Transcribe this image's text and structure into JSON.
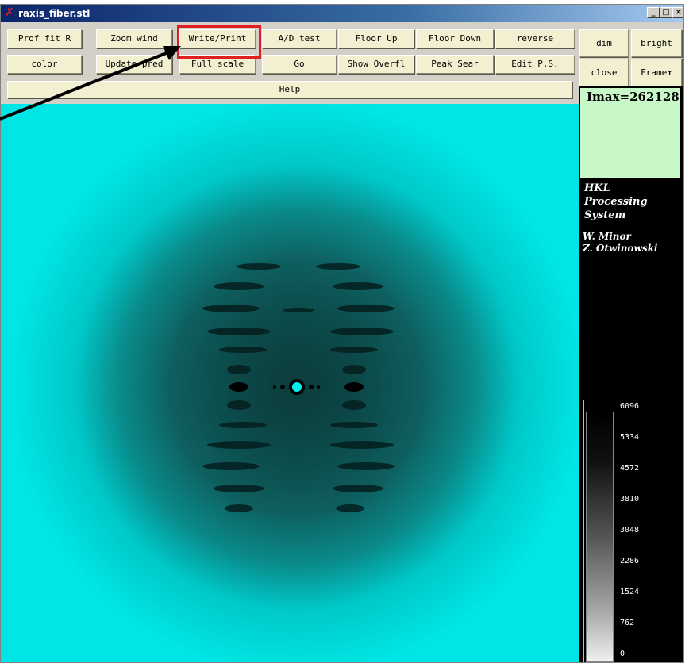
{
  "window": {
    "title": "raxis_fiber.stl",
    "app_icon": "x-app-icon",
    "controls": {
      "minimize": "_",
      "maximize": "□",
      "close": "×"
    }
  },
  "toolbar": {
    "row1": [
      "Prof fit R",
      "Zoom wind",
      "Write/Print",
      "A/D test",
      "Floor Up",
      "Floor Down",
      "reverse"
    ],
    "row2": [
      "color",
      "Update pred",
      "Full scale",
      "Go",
      "Show Overfl",
      "Peak Sear",
      "Edit P.S."
    ],
    "help": "Help",
    "right": {
      "dim": "dim",
      "bright": "bright",
      "close": "close",
      "frame": "Frame"
    }
  },
  "side_panel": {
    "imax": "Imax=262128",
    "hkl_lines": [
      "HKL",
      "Processing",
      "System"
    ],
    "authors": [
      "W. Minor",
      "Z. Otwinowski"
    ],
    "scale_ticks": [
      "6096",
      "5334",
      "4572",
      "3810",
      "3048",
      "2286",
      "1524",
      "762",
      "0"
    ]
  },
  "annotation": {
    "highlighted_button": "Write/Print",
    "highlight_color": "#e02020",
    "arrow_color": "#000000"
  },
  "colors": {
    "image_background": "#00e5e5",
    "button_face": "#f3f0d2",
    "imax_box": "#c8f8c8"
  }
}
